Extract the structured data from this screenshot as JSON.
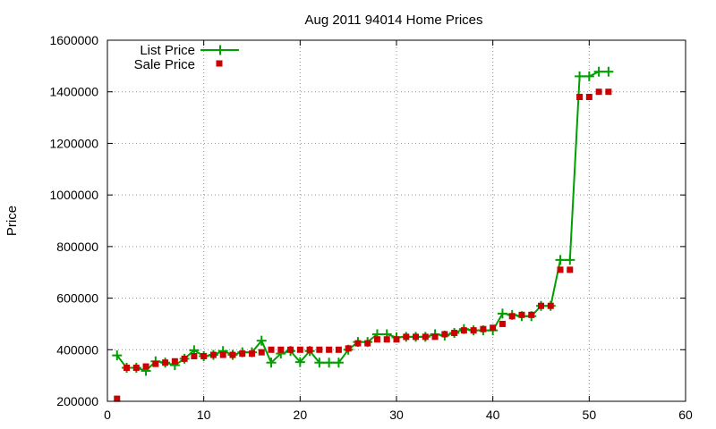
{
  "chart_data": {
    "type": "line",
    "title": "Aug 2011 94014 Home Prices",
    "xlabel": "",
    "ylabel": "Price",
    "xlim": [
      0,
      60
    ],
    "ylim": [
      200000,
      1600000
    ],
    "x_ticks": [
      0,
      10,
      20,
      30,
      40,
      50,
      60
    ],
    "y_ticks": [
      200000,
      400000,
      600000,
      800000,
      1000000,
      1200000,
      1400000,
      1600000
    ],
    "grid": true,
    "legend_position": "top-left",
    "series": [
      {
        "name": "List Price",
        "style": "linespoints",
        "marker": "plus",
        "color": "#00a000",
        "x": [
          1,
          2,
          3,
          4,
          5,
          6,
          7,
          8,
          9,
          10,
          11,
          12,
          13,
          14,
          15,
          16,
          17,
          18,
          19,
          20,
          21,
          22,
          23,
          24,
          25,
          26,
          27,
          28,
          29,
          30,
          31,
          32,
          33,
          34,
          35,
          36,
          37,
          38,
          39,
          40,
          41,
          42,
          43,
          44,
          45,
          46,
          47,
          48,
          49,
          50,
          51,
          52
        ],
        "y": [
          378000,
          330000,
          330000,
          318000,
          355000,
          350000,
          340000,
          365000,
          398000,
          375000,
          380000,
          395000,
          380000,
          390000,
          390000,
          435000,
          350000,
          385000,
          395000,
          352000,
          395000,
          350000,
          350000,
          350000,
          400000,
          430000,
          430000,
          460000,
          460000,
          448000,
          450000,
          450000,
          450000,
          460000,
          455000,
          465000,
          480000,
          475000,
          475000,
          475000,
          540000,
          535000,
          530000,
          530000,
          570000,
          570000,
          748000,
          748000,
          1460000,
          1460000,
          1478000,
          1478000
        ]
      },
      {
        "name": "Sale Price",
        "style": "points",
        "marker": "square",
        "color": "#cc0000",
        "x": [
          1,
          2,
          3,
          4,
          5,
          6,
          7,
          8,
          9,
          10,
          11,
          12,
          13,
          14,
          15,
          16,
          17,
          18,
          19,
          20,
          21,
          22,
          23,
          24,
          25,
          26,
          27,
          28,
          29,
          30,
          31,
          32,
          33,
          34,
          35,
          36,
          37,
          38,
          39,
          40,
          41,
          42,
          43,
          44,
          45,
          46,
          47,
          48,
          49,
          50,
          51,
          52
        ],
        "y": [
          210000,
          330000,
          330000,
          335000,
          345000,
          350000,
          355000,
          365000,
          375000,
          375000,
          380000,
          380000,
          380000,
          385000,
          385000,
          390000,
          400000,
          400000,
          400000,
          400000,
          400000,
          400000,
          400000,
          400000,
          405000,
          425000,
          425000,
          440000,
          440000,
          440000,
          450000,
          450000,
          450000,
          450000,
          460000,
          465000,
          475000,
          475000,
          480000,
          485000,
          500000,
          530000,
          535000,
          535000,
          570000,
          570000,
          710000,
          710000,
          1380000,
          1380000,
          1400000,
          1400000
        ]
      }
    ]
  }
}
